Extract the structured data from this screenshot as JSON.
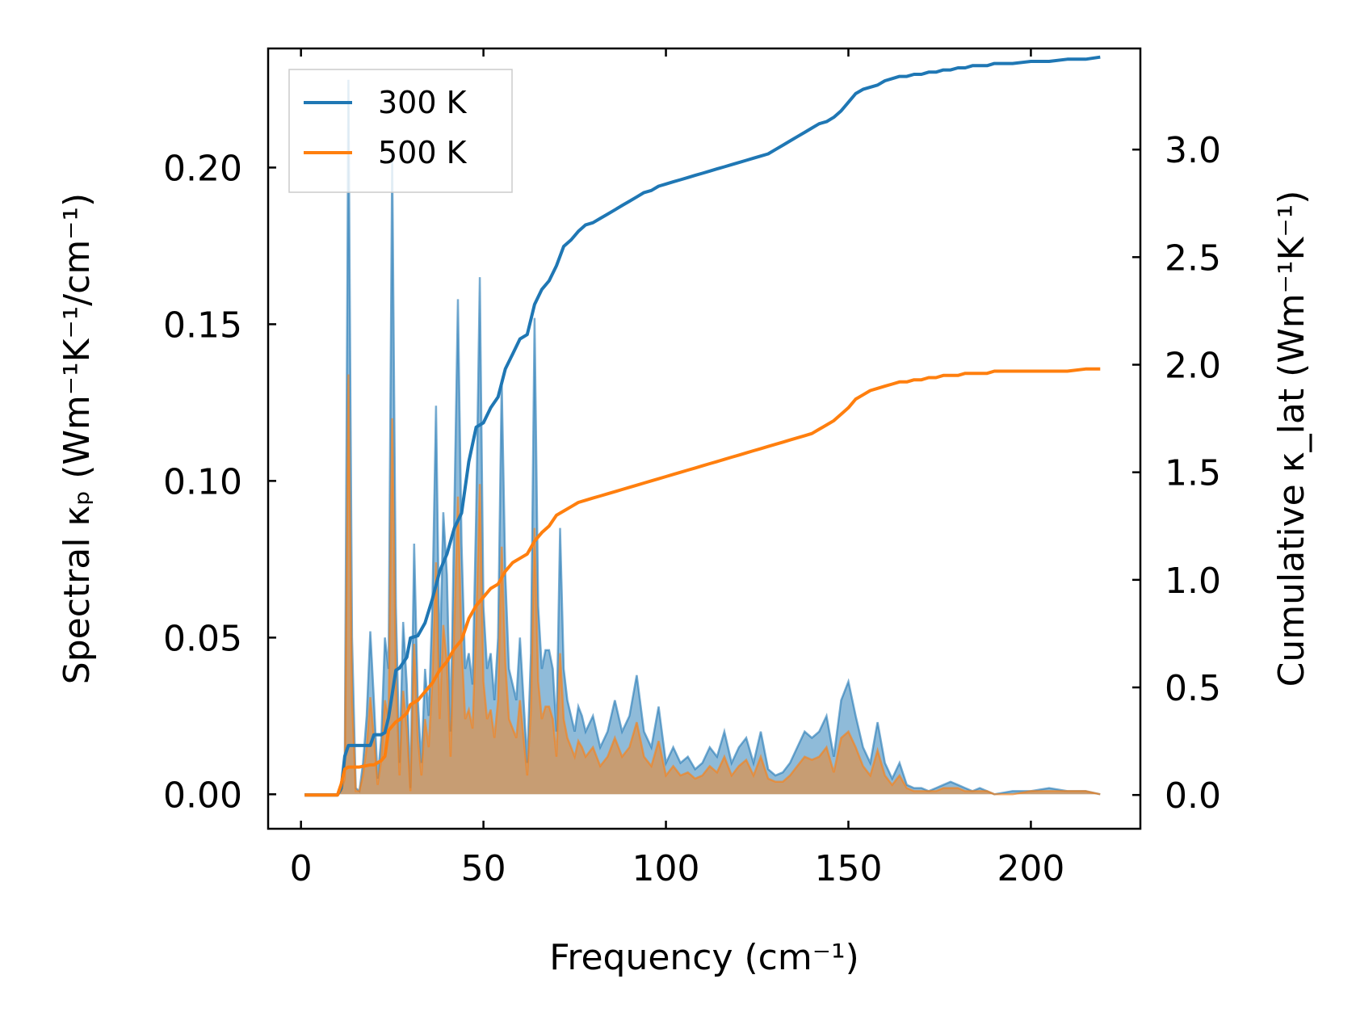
{
  "chart_data": {
    "type": "line",
    "xlabel": "Frequency (cm⁻¹)",
    "ylabel_left": "Spectral κₚ (Wm⁻¹K⁻¹/cm⁻¹)",
    "ylabel_right": "Cumulative κ_lat (Wm⁻¹K⁻¹)",
    "xlim": [
      -9,
      230
    ],
    "ylim_left": [
      -0.011,
      0.238
    ],
    "ylim_right": [
      -0.157,
      3.47
    ],
    "x_ticks": [
      0,
      50,
      100,
      150,
      200
    ],
    "y_ticks_left": [
      "0.00",
      "0.05",
      "0.10",
      "0.15",
      "0.20"
    ],
    "y_ticks_right": [
      "0.0",
      "0.5",
      "1.0",
      "1.5",
      "2.0",
      "2.5",
      "3.0"
    ],
    "legend_position": "top-left",
    "series_colors": {
      "300 K": "#1f77b4",
      "500 K": "#ff7f0e"
    },
    "spectral": [
      {
        "name": "300 K",
        "axis": "left",
        "x": [
          1,
          5,
          10,
          11,
          12,
          13,
          14,
          15,
          16,
          17,
          18,
          19,
          20,
          21,
          22,
          23,
          24,
          25,
          26,
          27,
          28,
          29,
          30,
          31,
          32,
          33,
          34,
          35,
          36,
          37,
          38,
          39,
          40,
          41,
          42,
          43,
          44,
          45,
          46,
          47,
          48,
          49,
          50,
          51,
          52,
          53,
          54,
          55,
          56,
          57,
          58,
          59,
          60,
          61,
          62,
          63,
          64,
          65,
          66,
          67,
          68,
          69,
          70,
          71,
          72,
          73,
          74,
          75,
          76,
          77,
          78,
          80,
          82,
          84,
          86,
          88,
          90,
          92,
          94,
          96,
          98,
          100,
          102,
          104,
          106,
          108,
          110,
          112,
          114,
          116,
          118,
          120,
          122,
          124,
          126,
          128,
          130,
          132,
          134,
          136,
          138,
          140,
          142,
          144,
          146,
          148,
          150,
          152,
          154,
          156,
          158,
          160,
          162,
          164,
          166,
          168,
          170,
          172,
          174,
          176,
          178,
          180,
          182,
          184,
          186,
          188,
          190,
          195,
          200,
          205,
          210,
          215,
          219
        ],
        "y": [
          0,
          0,
          0,
          0.001,
          0.01,
          0.228,
          0.05,
          0.002,
          0.001,
          0.01,
          0.025,
          0.052,
          0.03,
          0.005,
          0.018,
          0.05,
          0.04,
          0.205,
          0.06,
          0.01,
          0.055,
          0.035,
          0.002,
          0.08,
          0.03,
          0.01,
          0.04,
          0.025,
          0.06,
          0.124,
          0.04,
          0.09,
          0.07,
          0.02,
          0.09,
          0.158,
          0.08,
          0.04,
          0.045,
          0.035,
          0.09,
          0.165,
          0.06,
          0.04,
          0.045,
          0.03,
          0.05,
          0.132,
          0.07,
          0.04,
          0.035,
          0.03,
          0.05,
          0.03,
          0.01,
          0.045,
          0.152,
          0.06,
          0.04,
          0.046,
          0.046,
          0.04,
          0.02,
          0.085,
          0.04,
          0.03,
          0.025,
          0.02,
          0.028,
          0.025,
          0.02,
          0.025,
          0.015,
          0.02,
          0.03,
          0.02,
          0.025,
          0.038,
          0.02,
          0.015,
          0.028,
          0.01,
          0.015,
          0.01,
          0.012,
          0.008,
          0.01,
          0.015,
          0.012,
          0.02,
          0.01,
          0.015,
          0.018,
          0.01,
          0.02,
          0.008,
          0.006,
          0.007,
          0.01,
          0.015,
          0.02,
          0.018,
          0.02,
          0.025,
          0.012,
          0.03,
          0.036,
          0.025,
          0.015,
          0.01,
          0.023,
          0.01,
          0.005,
          0.01,
          0.003,
          0.002,
          0.002,
          0.001,
          0.002,
          0.003,
          0.004,
          0.003,
          0.002,
          0.001,
          0.002,
          0.001,
          0,
          0.001,
          0.001,
          0.002,
          0.001,
          0.001,
          0
        ]
      },
      {
        "name": "500 K",
        "axis": "left",
        "x": [
          1,
          5,
          10,
          11,
          12,
          13,
          14,
          15,
          16,
          17,
          18,
          19,
          20,
          21,
          22,
          23,
          24,
          25,
          26,
          27,
          28,
          29,
          30,
          31,
          32,
          33,
          34,
          35,
          36,
          37,
          38,
          39,
          40,
          41,
          42,
          43,
          44,
          45,
          46,
          47,
          48,
          49,
          50,
          51,
          52,
          53,
          54,
          55,
          56,
          57,
          58,
          59,
          60,
          61,
          62,
          63,
          64,
          65,
          66,
          67,
          68,
          69,
          70,
          71,
          72,
          73,
          74,
          75,
          76,
          77,
          78,
          80,
          82,
          84,
          86,
          88,
          90,
          92,
          94,
          96,
          98,
          100,
          102,
          104,
          106,
          108,
          110,
          112,
          114,
          116,
          118,
          120,
          122,
          124,
          126,
          128,
          130,
          132,
          134,
          136,
          138,
          140,
          142,
          144,
          146,
          148,
          150,
          152,
          154,
          156,
          158,
          160,
          162,
          164,
          166,
          168,
          170,
          172,
          174,
          176,
          178,
          180,
          182,
          184,
          186,
          188,
          190,
          195,
          200,
          205,
          210,
          215,
          219
        ],
        "y": [
          0,
          0,
          0,
          0.001,
          0.005,
          0.134,
          0.03,
          0.001,
          0.001,
          0.006,
          0.015,
          0.031,
          0.018,
          0.003,
          0.011,
          0.03,
          0.024,
          0.12,
          0.036,
          0.006,
          0.033,
          0.021,
          0.001,
          0.048,
          0.018,
          0.006,
          0.024,
          0.015,
          0.036,
          0.074,
          0.024,
          0.054,
          0.042,
          0.012,
          0.054,
          0.095,
          0.048,
          0.024,
          0.027,
          0.021,
          0.054,
          0.099,
          0.036,
          0.024,
          0.027,
          0.018,
          0.03,
          0.079,
          0.042,
          0.024,
          0.021,
          0.018,
          0.03,
          0.018,
          0.006,
          0.027,
          0.085,
          0.036,
          0.024,
          0.028,
          0.028,
          0.024,
          0.012,
          0.045,
          0.024,
          0.018,
          0.015,
          0.012,
          0.017,
          0.015,
          0.012,
          0.015,
          0.009,
          0.012,
          0.018,
          0.012,
          0.015,
          0.023,
          0.012,
          0.009,
          0.017,
          0.006,
          0.009,
          0.006,
          0.007,
          0.005,
          0.006,
          0.009,
          0.007,
          0.012,
          0.006,
          0.009,
          0.011,
          0.006,
          0.012,
          0.005,
          0.004,
          0.004,
          0.006,
          0.009,
          0.012,
          0.011,
          0.012,
          0.015,
          0.007,
          0.018,
          0.02,
          0.015,
          0.009,
          0.006,
          0.014,
          0.006,
          0.003,
          0.006,
          0.002,
          0.001,
          0.001,
          0.001,
          0.001,
          0.002,
          0.002,
          0.002,
          0.001,
          0.001,
          0.001,
          0.001,
          0,
          0,
          0.001,
          0.001,
          0.001,
          0.001,
          0
        ]
      }
    ],
    "cumulative": [
      {
        "name": "300 K",
        "axis": "right",
        "x": [
          1,
          10,
          11,
          12,
          13,
          16,
          19,
          20,
          22,
          23,
          24,
          26,
          27,
          29,
          30,
          32,
          34,
          36,
          38,
          40,
          42,
          44,
          46,
          48,
          50,
          52,
          54,
          56,
          58,
          60,
          62,
          64,
          66,
          68,
          70,
          72,
          74,
          76,
          78,
          80,
          82,
          84,
          86,
          88,
          90,
          92,
          94,
          96,
          98,
          100,
          102,
          104,
          106,
          108,
          110,
          112,
          114,
          116,
          118,
          120,
          122,
          124,
          126,
          128,
          130,
          132,
          134,
          136,
          138,
          140,
          142,
          144,
          146,
          148,
          150,
          152,
          154,
          156,
          158,
          160,
          162,
          164,
          166,
          168,
          170,
          172,
          174,
          176,
          178,
          180,
          182,
          184,
          186,
          188,
          190,
          195,
          200,
          205,
          210,
          215,
          219
        ],
        "y": [
          0,
          0,
          0.03,
          0.18,
          0.23,
          0.23,
          0.23,
          0.28,
          0.28,
          0.29,
          0.36,
          0.58,
          0.59,
          0.64,
          0.73,
          0.74,
          0.8,
          0.91,
          1.04,
          1.12,
          1.24,
          1.31,
          1.55,
          1.71,
          1.73,
          1.8,
          1.85,
          1.98,
          2.05,
          2.12,
          2.14,
          2.28,
          2.35,
          2.39,
          2.46,
          2.55,
          2.58,
          2.62,
          2.65,
          2.66,
          2.68,
          2.7,
          2.72,
          2.74,
          2.76,
          2.78,
          2.8,
          2.81,
          2.83,
          2.84,
          2.85,
          2.86,
          2.87,
          2.88,
          2.89,
          2.9,
          2.91,
          2.92,
          2.93,
          2.94,
          2.95,
          2.96,
          2.97,
          2.98,
          3.0,
          3.02,
          3.04,
          3.06,
          3.08,
          3.1,
          3.12,
          3.13,
          3.15,
          3.18,
          3.22,
          3.26,
          3.28,
          3.29,
          3.3,
          3.32,
          3.33,
          3.34,
          3.34,
          3.35,
          3.35,
          3.36,
          3.36,
          3.37,
          3.37,
          3.38,
          3.38,
          3.39,
          3.39,
          3.39,
          3.4,
          3.4,
          3.41,
          3.41,
          3.42,
          3.42,
          3.43
        ]
      },
      {
        "name": "500 K",
        "axis": "right",
        "x": [
          1,
          10,
          11,
          12,
          13,
          16,
          19,
          20,
          22,
          23,
          24,
          26,
          27,
          29,
          30,
          32,
          34,
          36,
          38,
          40,
          42,
          44,
          46,
          48,
          50,
          52,
          54,
          56,
          58,
          60,
          62,
          64,
          66,
          68,
          70,
          72,
          74,
          76,
          78,
          80,
          82,
          84,
          86,
          88,
          90,
          92,
          94,
          96,
          98,
          100,
          102,
          104,
          106,
          108,
          110,
          112,
          114,
          116,
          118,
          120,
          122,
          124,
          126,
          128,
          130,
          132,
          134,
          136,
          138,
          140,
          142,
          144,
          146,
          148,
          150,
          152,
          154,
          156,
          158,
          160,
          162,
          164,
          166,
          168,
          170,
          172,
          174,
          176,
          178,
          180,
          182,
          184,
          186,
          188,
          190,
          195,
          200,
          205,
          210,
          215,
          219
        ],
        "y": [
          0,
          0,
          0.05,
          0.12,
          0.13,
          0.13,
          0.14,
          0.14,
          0.16,
          0.18,
          0.3,
          0.34,
          0.35,
          0.38,
          0.42,
          0.44,
          0.48,
          0.52,
          0.58,
          0.62,
          0.68,
          0.72,
          0.82,
          0.88,
          0.92,
          0.96,
          0.98,
          1.04,
          1.08,
          1.1,
          1.12,
          1.18,
          1.22,
          1.25,
          1.3,
          1.32,
          1.34,
          1.36,
          1.37,
          1.38,
          1.39,
          1.4,
          1.41,
          1.42,
          1.43,
          1.44,
          1.45,
          1.46,
          1.47,
          1.48,
          1.49,
          1.5,
          1.51,
          1.52,
          1.53,
          1.54,
          1.55,
          1.56,
          1.57,
          1.58,
          1.59,
          1.6,
          1.61,
          1.62,
          1.63,
          1.64,
          1.65,
          1.66,
          1.67,
          1.68,
          1.7,
          1.72,
          1.74,
          1.77,
          1.8,
          1.84,
          1.86,
          1.88,
          1.89,
          1.9,
          1.91,
          1.92,
          1.92,
          1.93,
          1.93,
          1.94,
          1.94,
          1.95,
          1.95,
          1.95,
          1.96,
          1.96,
          1.96,
          1.96,
          1.97,
          1.97,
          1.97,
          1.97,
          1.97,
          1.98,
          1.98
        ]
      }
    ],
    "legend": [
      {
        "label": "300 K",
        "color": "#1f77b4"
      },
      {
        "label": "500 K",
        "color": "#ff7f0e"
      }
    ]
  }
}
